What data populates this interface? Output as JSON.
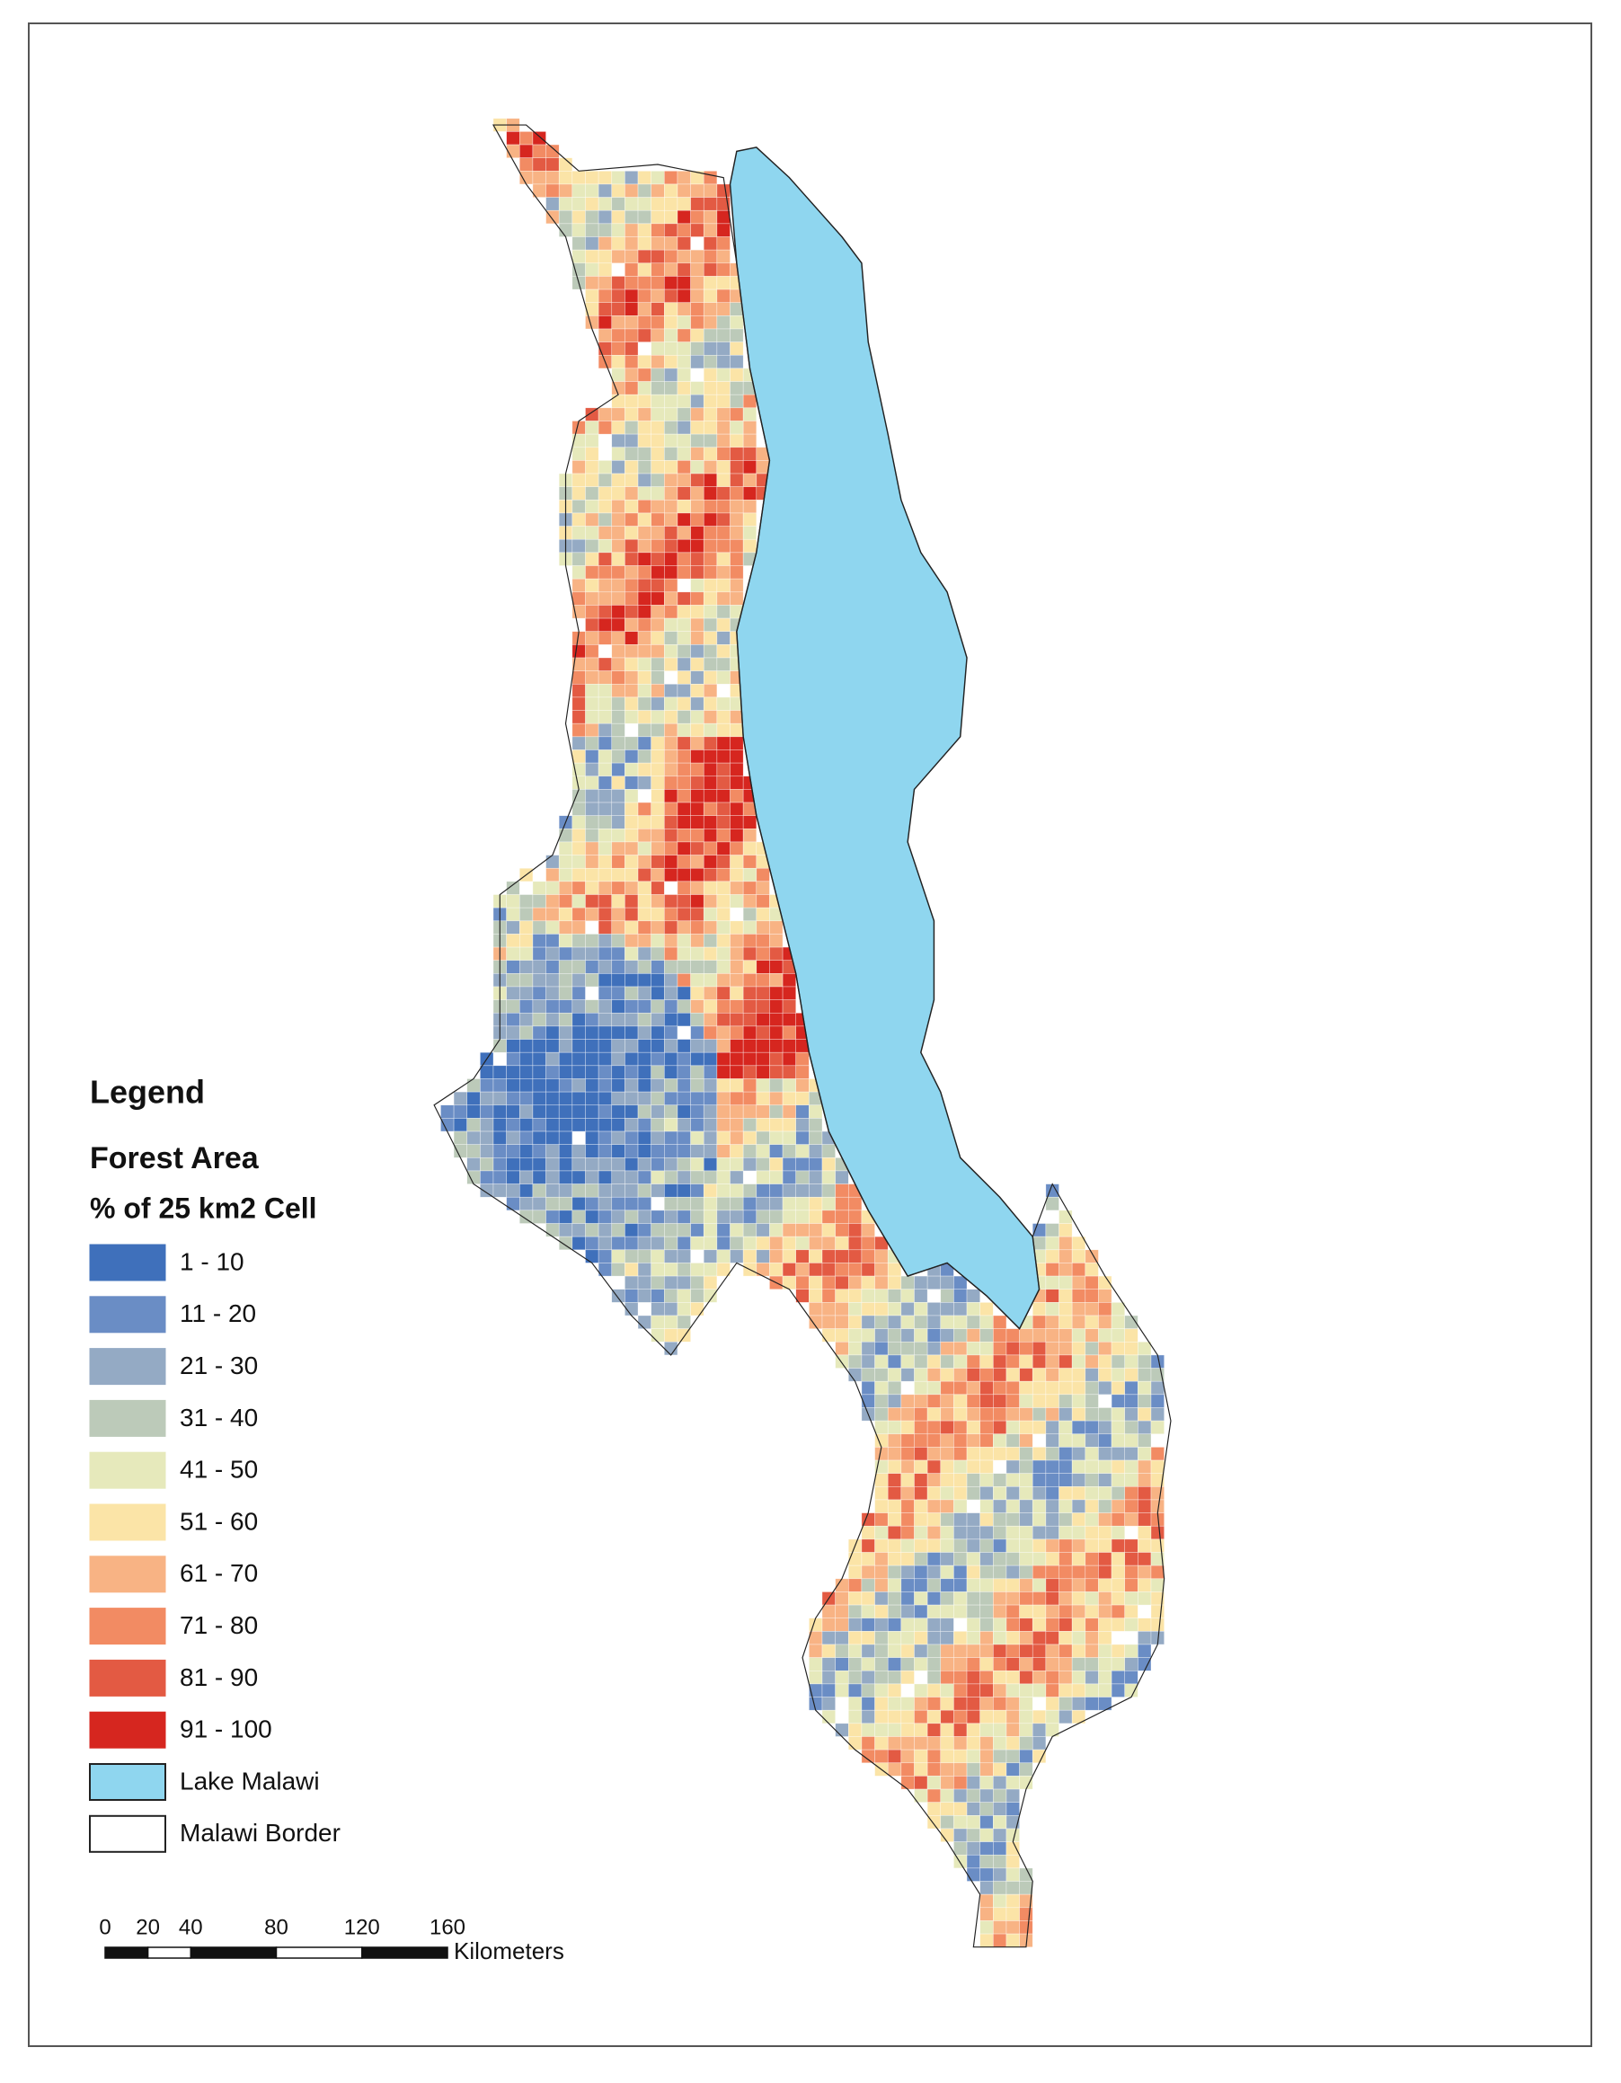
{
  "legend": {
    "title": "Legend",
    "subtitle": "Forest Area",
    "unit": "% of 25 km2 Cell",
    "items": [
      {
        "label": "1 - 10",
        "color": "#3f70bb"
      },
      {
        "label": "11 - 20",
        "color": "#6a8dc5"
      },
      {
        "label": "21 - 30",
        "color": "#94aac4"
      },
      {
        "label": "31 - 40",
        "color": "#bccab9"
      },
      {
        "label": "41 - 50",
        "color": "#e6e9bb"
      },
      {
        "label": "51 - 60",
        "color": "#fbe4a7"
      },
      {
        "label": "61 - 70",
        "color": "#f8b384"
      },
      {
        "label": "71 - 80",
        "color": "#f28b63"
      },
      {
        "label": "81 - 90",
        "color": "#e35a43"
      },
      {
        "label": "91 - 100",
        "color": "#d6261f"
      },
      {
        "label": "Lake Malawi",
        "color": "#8fd6ef"
      },
      {
        "label": "Malawi Border",
        "color": "#ffffff"
      }
    ]
  },
  "scale_bar": {
    "ticks": [
      0,
      20,
      40,
      80,
      120,
      160
    ],
    "unit": "Kilometers"
  }
}
